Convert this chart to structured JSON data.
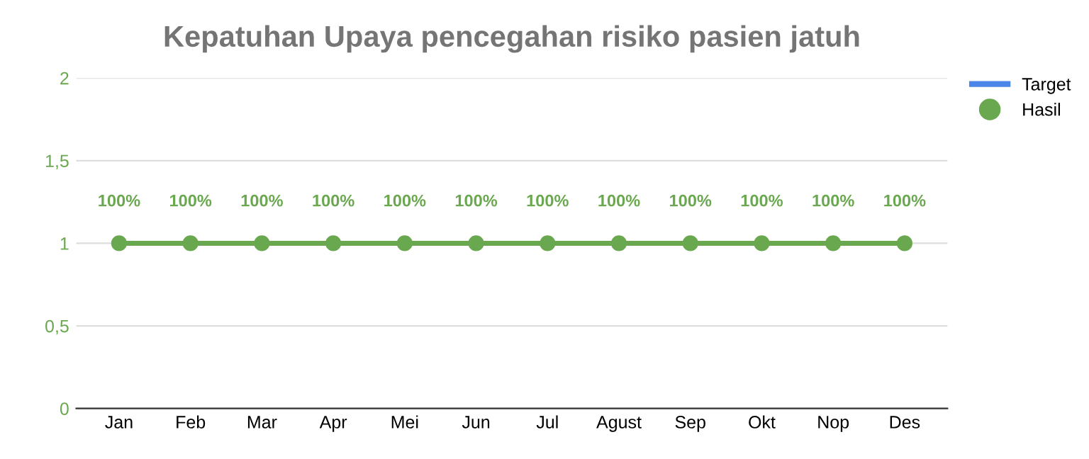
{
  "chart_data": {
    "type": "line",
    "title": "Kepatuhan Upaya pencegahan risiko pasien jatuh",
    "categories": [
      "Jan",
      "Feb",
      "Mar",
      "Apr",
      "Mei",
      "Jun",
      "Jul",
      "Agust",
      "Sep",
      "Okt",
      "Nop",
      "Des"
    ],
    "series": [
      {
        "name": "Target",
        "color": "#4a86e8",
        "values": [
          null,
          null,
          null,
          null,
          null,
          null,
          null,
          null,
          null,
          null,
          null,
          null
        ],
        "marker": "none"
      },
      {
        "name": "Hasil",
        "color": "#6aa84f",
        "values": [
          1,
          1,
          1,
          1,
          1,
          1,
          1,
          1,
          1,
          1,
          1,
          1
        ],
        "marker": "circle",
        "value_labels": [
          "100%",
          "100%",
          "100%",
          "100%",
          "100%",
          "100%",
          "100%",
          "100%",
          "100%",
          "100%",
          "100%",
          "100%"
        ]
      }
    ],
    "ylim": [
      0,
      2
    ],
    "yticks": [
      0,
      {
        "value": 0.5,
        "label": "0,5"
      },
      1,
      {
        "value": 1.5,
        "label": "1,5"
      },
      2
    ],
    "grid": "y",
    "legend": "top right",
    "line_style": "solid"
  }
}
